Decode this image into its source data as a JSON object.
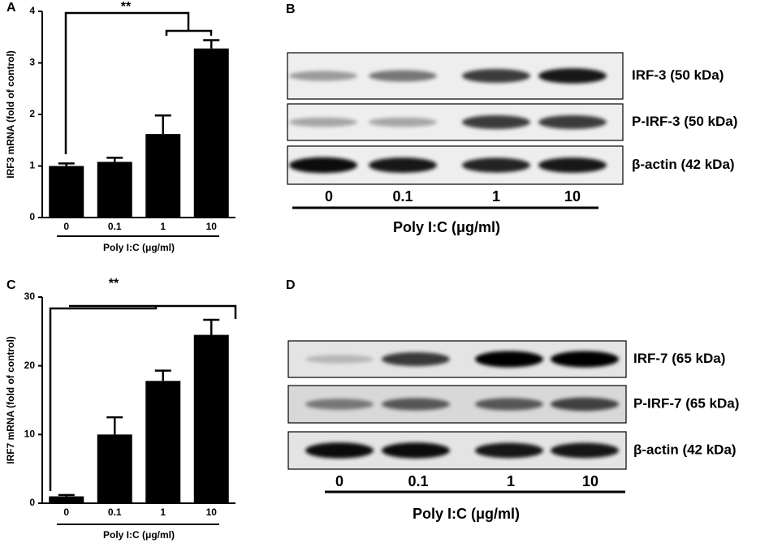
{
  "chart_data": [
    {
      "type": "bar",
      "panel": "A",
      "ylabel": "IRF3 mRNA (fold of control)",
      "xlabel": "Poly I:C (μg/ml)",
      "categories": [
        "0",
        "0.1",
        "1",
        "10"
      ],
      "values": [
        1.0,
        1.08,
        1.62,
        3.28
      ],
      "errors": [
        0.05,
        0.08,
        0.36,
        0.16
      ],
      "color": "#000000",
      "ylim": [
        0,
        4
      ],
      "yticks": [
        0,
        1,
        2,
        3,
        4
      ],
      "annotation": "**"
    },
    {
      "type": "bar",
      "panel": "C",
      "ylabel": "IRF7 mRNA (fold of control)",
      "xlabel": "Poly I:C (μg/ml)",
      "categories": [
        "0",
        "0.1",
        "1",
        "10"
      ],
      "values": [
        1.0,
        10.0,
        17.8,
        24.5
      ],
      "errors": [
        0.2,
        2.5,
        1.5,
        2.2
      ],
      "color": "#000000",
      "ylim": [
        0,
        30
      ],
      "yticks": [
        0,
        10,
        20,
        30
      ],
      "annotation": "**"
    }
  ],
  "blots": [
    {
      "panel": "B",
      "rows": [
        "IRF-3 (50 kDa)",
        "P-IRF-3 (50 kDa)",
        "β-actin (42 kDa)"
      ],
      "lanes": [
        "0",
        "0.1",
        "1",
        "10"
      ],
      "xlabel": "Poly I:C (μg/ml)"
    },
    {
      "panel": "D",
      "rows": [
        "IRF-7 (65 kDa)",
        "P-IRF-7 (65 kDa)",
        "β-actin (42 kDa)"
      ],
      "lanes": [
        "0",
        "0.1",
        "1",
        "10"
      ],
      "xlabel": "Poly I:C (μg/ml)"
    }
  ]
}
